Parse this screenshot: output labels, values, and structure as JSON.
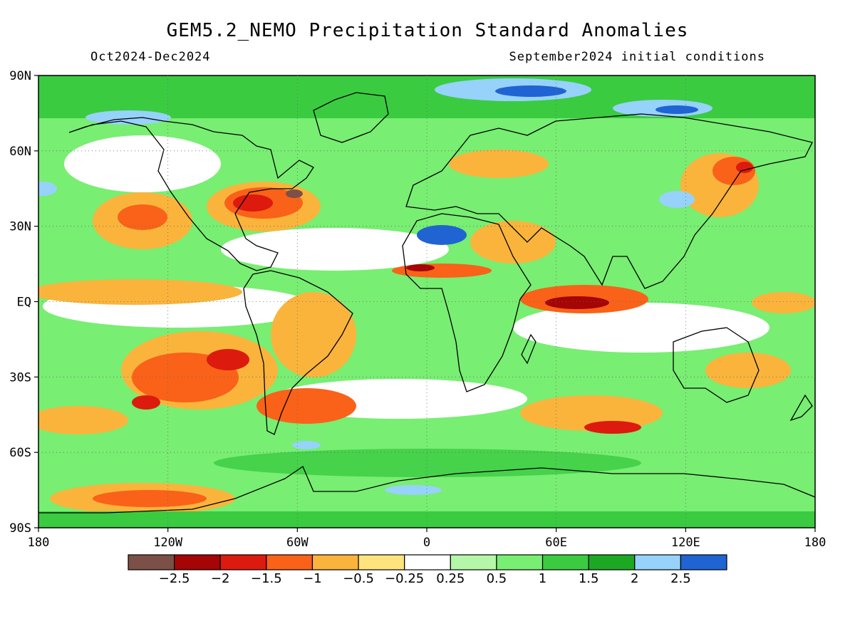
{
  "title": "GEM5.2_NEMO Precipitation Standard Anomalies",
  "subtitle_left": "Oct2024-Dec2024",
  "subtitle_right": "September2024 initial conditions",
  "lat_ticks": [
    {
      "label": "90N",
      "lat": 90
    },
    {
      "label": "60N",
      "lat": 60
    },
    {
      "label": "30N",
      "lat": 30
    },
    {
      "label": "EQ",
      "lat": 0
    },
    {
      "label": "30S",
      "lat": -30
    },
    {
      "label": "60S",
      "lat": -60
    },
    {
      "label": "90S",
      "lat": -90
    }
  ],
  "lon_ticks": [
    {
      "label": "180",
      "lon": -180
    },
    {
      "label": "120W",
      "lon": -120
    },
    {
      "label": "60W",
      "lon": -60
    },
    {
      "label": "0",
      "lon": 0
    },
    {
      "label": "60E",
      "lon": 60
    },
    {
      "label": "120E",
      "lon": 120
    },
    {
      "label": "180",
      "lon": 180
    }
  ],
  "colorbar": {
    "colors": [
      "#7b5046",
      "#a50505",
      "#dd1a0e",
      "#f96218",
      "#fab43c",
      "#fde47d",
      "#ffffff",
      "#b5f7a8",
      "#78ee72",
      "#3acb41",
      "#1da824",
      "#96d2fa",
      "#1f64d2"
    ],
    "labels": [
      "−2.5",
      "−2",
      "−1.5",
      "−1",
      "−0.5",
      "−0.25",
      "0.25",
      "0.5",
      "1",
      "1.5",
      "2",
      "2.5"
    ]
  },
  "legend": {
    "strongly_wet_color": "#1f64d2",
    "strongly_dry_color": "#7b5046"
  }
}
